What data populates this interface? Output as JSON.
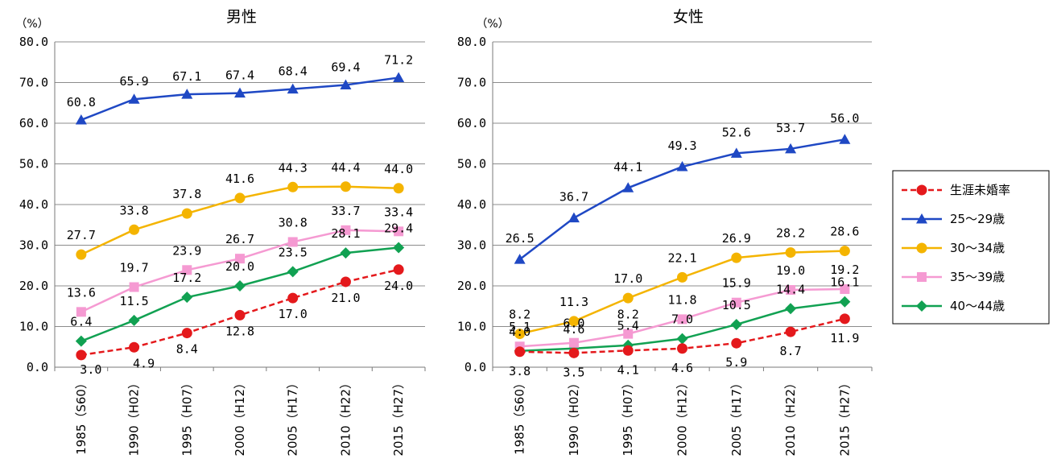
{
  "chart_data": [
    {
      "type": "line",
      "title": "男性",
      "unit_label": "（%）",
      "categories": [
        "1985（S60）",
        "1990（H02）",
        "1995（H07）",
        "2000（H12）",
        "2005（H17）",
        "2010（H22）",
        "2015（H27）"
      ],
      "ylim": [
        0,
        80
      ],
      "yticks": [
        "0.0",
        "10.0",
        "20.0",
        "30.0",
        "40.0",
        "50.0",
        "60.0",
        "70.0",
        "80.0"
      ],
      "grid": true,
      "series": [
        {
          "name": "生涯未婚率",
          "values": [
            3.0,
            4.9,
            8.4,
            12.8,
            17.0,
            21.0,
            24.0
          ],
          "labels": [
            "3.0",
            "4.9",
            "8.4",
            "12.8",
            "17.0",
            "21.0",
            "24.0"
          ]
        },
        {
          "name": "25～29歳",
          "values": [
            60.8,
            65.9,
            67.1,
            67.4,
            68.4,
            69.4,
            71.2
          ],
          "labels": [
            "60.8",
            "65.9",
            "67.1",
            "67.4",
            "68.4",
            "69.4",
            "71.2"
          ]
        },
        {
          "name": "30～34歳",
          "values": [
            27.7,
            33.8,
            37.8,
            41.6,
            44.3,
            44.4,
            44.0
          ],
          "labels": [
            "27.7",
            "33.8",
            "37.8",
            "41.6",
            "44.3",
            "44.4",
            "44.0"
          ]
        },
        {
          "name": "35～39歳",
          "values": [
            13.6,
            19.7,
            23.9,
            26.7,
            30.8,
            33.7,
            33.4
          ],
          "labels": [
            "13.6",
            "19.7",
            "23.9",
            "26.7",
            "30.8",
            "33.7",
            "33.4"
          ]
        },
        {
          "name": "40～44歳",
          "values": [
            6.4,
            11.5,
            17.2,
            20.0,
            23.5,
            28.1,
            29.4
          ],
          "labels": [
            "6.4",
            "11.5",
            "17.2",
            "20.0",
            "23.5",
            "28.1",
            "29.4"
          ]
        }
      ]
    },
    {
      "type": "line",
      "title": "女性",
      "unit_label": "（%）",
      "categories": [
        "1985（S60）",
        "1990（H02）",
        "1995（H07）",
        "2000（H12）",
        "2005（H17）",
        "2010（H22）",
        "2015（H27）"
      ],
      "ylim": [
        0,
        80
      ],
      "yticks": [
        "0.0",
        "10.0",
        "20.0",
        "30.0",
        "40.0",
        "50.0",
        "60.0",
        "70.0",
        "80.0"
      ],
      "grid": true,
      "series": [
        {
          "name": "生涯未婚率",
          "values": [
            3.8,
            3.5,
            4.1,
            4.6,
            5.9,
            8.7,
            11.9
          ],
          "labels": [
            "3.8",
            "3.5",
            "4.1",
            "4.6",
            "5.9",
            "8.7",
            "11.9"
          ]
        },
        {
          "name": "25～29歳",
          "values": [
            26.5,
            36.7,
            44.1,
            49.3,
            52.6,
            53.7,
            56.0
          ],
          "labels": [
            "26.5",
            "36.7",
            "44.1",
            "49.3",
            "52.6",
            "53.7",
            "56.0"
          ]
        },
        {
          "name": "30～34歳",
          "values": [
            8.2,
            11.3,
            17.0,
            22.1,
            26.9,
            28.2,
            28.6
          ],
          "labels": [
            "8.2",
            "11.3",
            "17.0",
            "22.1",
            "26.9",
            "28.2",
            "28.6"
          ]
        },
        {
          "name": "35～39歳",
          "values": [
            5.1,
            6.0,
            8.2,
            11.8,
            15.9,
            19.0,
            19.2
          ],
          "labels": [
            "5.1",
            "6.0",
            "8.2",
            "11.8",
            "15.9",
            "19.0",
            "19.2"
          ]
        },
        {
          "name": "40～44歳",
          "values": [
            4.0,
            4.6,
            5.4,
            7.0,
            10.5,
            14.4,
            16.1
          ],
          "labels": [
            "4.0",
            "4.6",
            "5.4",
            "7.0",
            "10.5",
            "14.4",
            "16.1"
          ]
        }
      ]
    }
  ],
  "legend": {
    "placement": "right",
    "items": [
      {
        "name": "生涯未婚率",
        "color": "#e4191c",
        "marker": "circle",
        "dashed": true
      },
      {
        "name": "25～29歳",
        "color": "#1f48c4",
        "marker": "triangle",
        "dashed": false
      },
      {
        "name": "30～34歳",
        "color": "#f4b400",
        "marker": "circle",
        "dashed": false
      },
      {
        "name": "35～39歳",
        "color": "#f59ad2",
        "marker": "square",
        "dashed": false
      },
      {
        "name": "40～44歳",
        "color": "#11a152",
        "marker": "diamond",
        "dashed": false
      }
    ]
  }
}
